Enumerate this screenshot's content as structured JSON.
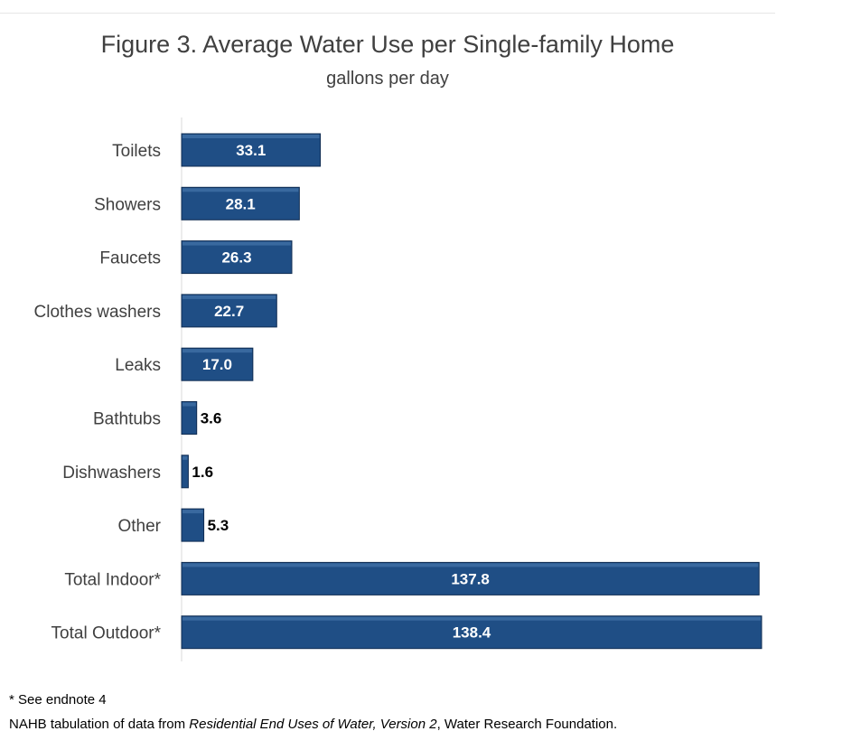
{
  "title": "Figure 3.  Average Water Use per Single-family Home",
  "subtitle": "gallons per day",
  "footnotes": {
    "endnote": "* See endnote 4",
    "source_prefix": "NAHB tabulation of data from ",
    "source_title": "Residential End Uses of Water, Version 2",
    "source_suffix": ", Water Research Foundation."
  },
  "colors": {
    "bar": "#1f4e85",
    "bar_edge": "#0f2c52",
    "label_inside": "#ffffff",
    "label_outside": "#000000",
    "category_text": "#404040"
  },
  "chart_data": {
    "type": "bar",
    "orientation": "horizontal",
    "title": "Figure 3.  Average Water Use per Single-family Home",
    "subtitle": "gallons per day",
    "categories": [
      "Toilets",
      "Showers",
      "Faucets",
      "Clothes washers",
      "Leaks",
      "Bathtubs",
      "Dishwashers",
      "Other",
      "Total Indoor*",
      "Total Outdoor*"
    ],
    "values": [
      33.1,
      28.1,
      26.3,
      22.7,
      17.0,
      3.6,
      1.6,
      5.3,
      137.8,
      138.4
    ],
    "value_labels": [
      "33.1",
      "28.1",
      "26.3",
      "22.7",
      "17.0",
      "3.6",
      "1.6",
      "5.3",
      "137.8",
      "138.4"
    ],
    "xlim": [
      0,
      138.4
    ],
    "grid": false,
    "legend": "none"
  }
}
